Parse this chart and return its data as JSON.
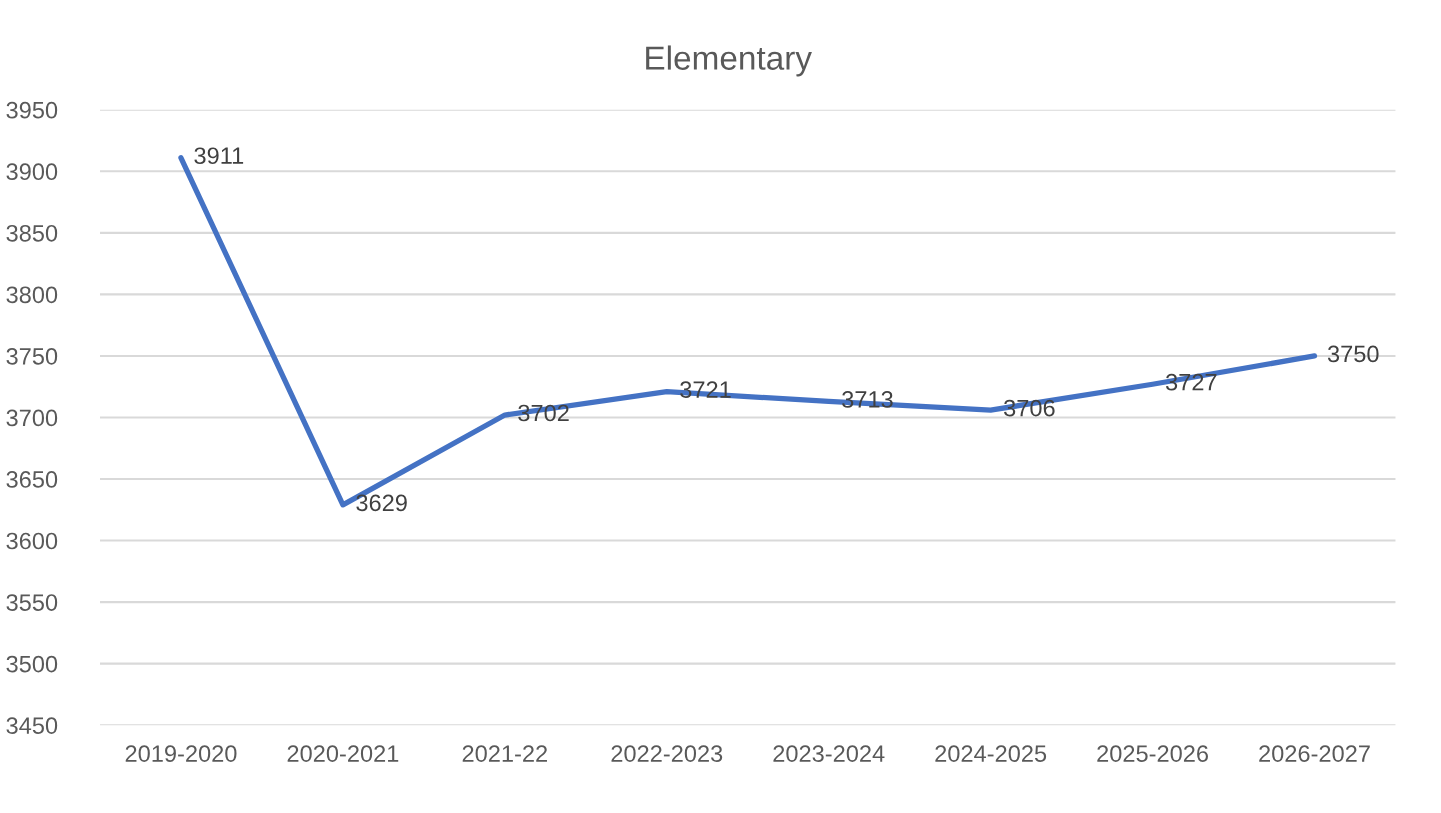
{
  "chart_data": {
    "type": "line",
    "title": "Elementary",
    "categories": [
      "2019-2020",
      "2020-2021",
      "2021-22",
      "2022-2023",
      "2023-2024",
      "2024-2025",
      "2025-2026",
      "2026-2027"
    ],
    "values": [
      3911,
      3629,
      3702,
      3721,
      3713,
      3706,
      3727,
      3750
    ],
    "color": "#4472c4",
    "ylim": [
      3450,
      3950
    ],
    "yticks": [
      3450,
      3500,
      3550,
      3600,
      3650,
      3700,
      3750,
      3800,
      3850,
      3900,
      3950
    ],
    "grid": "y",
    "data_labels": true
  }
}
